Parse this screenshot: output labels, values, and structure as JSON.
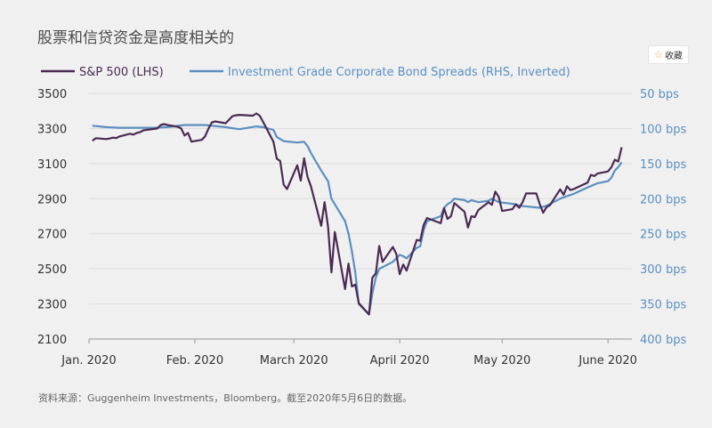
{
  "page": {
    "title": "股票和信贷资金是高度相关的",
    "favorite_label": "收藏",
    "favorite_icon": "star-icon",
    "source": "资料来源：Guggenheim Investments，Bloomberg。截至2020年5月6日的数据。"
  },
  "chart_data": {
    "type": "line",
    "title": "股票和信贷资金是高度相关的",
    "x_labels": [
      "Jan. 2020",
      "Feb. 2020",
      "March 2020",
      "April 2020",
      "May 2020",
      "June 2020"
    ],
    "left_axis": {
      "ticks": [
        "3500",
        "3300",
        "3100",
        "2900",
        "2700",
        "2500",
        "2300",
        "2100"
      ],
      "range": [
        2100,
        3500
      ]
    },
    "right_axis": {
      "ticks": [
        "50 bps",
        "100 bps",
        "150 bps",
        "200 bps",
        "250 bps",
        "300 bps",
        "350 bps",
        "400 bps"
      ],
      "range": [
        50,
        400
      ],
      "inverted": true
    },
    "legend_position": "top-left",
    "series": [
      {
        "name": "S&P 500 (LHS)",
        "axis": "left",
        "color": "#4a2a52",
        "points": [
          [
            "2020-01-02",
            3230
          ],
          [
            "2020-01-03",
            3245
          ],
          [
            "2020-01-06",
            3240
          ],
          [
            "2020-01-07",
            3243
          ],
          [
            "2020-01-08",
            3248
          ],
          [
            "2020-01-09",
            3246
          ],
          [
            "2020-01-10",
            3255
          ],
          [
            "2020-01-13",
            3270
          ],
          [
            "2020-01-14",
            3265
          ],
          [
            "2020-01-15",
            3275
          ],
          [
            "2020-01-16",
            3280
          ],
          [
            "2020-01-17",
            3290
          ],
          [
            "2020-01-21",
            3300
          ],
          [
            "2020-01-22",
            3320
          ],
          [
            "2020-01-23",
            3325
          ],
          [
            "2020-01-24",
            3320
          ],
          [
            "2020-01-27",
            3310
          ],
          [
            "2020-01-28",
            3300
          ],
          [
            "2020-01-29",
            3260
          ],
          [
            "2020-01-30",
            3275
          ],
          [
            "2020-01-31",
            3225
          ],
          [
            "2020-02-03",
            3235
          ],
          [
            "2020-02-04",
            3255
          ],
          [
            "2020-02-05",
            3300
          ],
          [
            "2020-02-06",
            3335
          ],
          [
            "2020-02-07",
            3340
          ],
          [
            "2020-02-10",
            3330
          ],
          [
            "2020-02-11",
            3350
          ],
          [
            "2020-02-12",
            3370
          ],
          [
            "2020-02-13",
            3375
          ],
          [
            "2020-02-14",
            3378
          ],
          [
            "2020-02-18",
            3373
          ],
          [
            "2020-02-19",
            3386
          ],
          [
            "2020-02-20",
            3373
          ],
          [
            "2020-02-21",
            3337
          ],
          [
            "2020-02-24",
            3225
          ],
          [
            "2020-02-25",
            3128
          ],
          [
            "2020-02-26",
            3115
          ],
          [
            "2020-02-27",
            2980
          ],
          [
            "2020-02-28",
            2955
          ],
          [
            "2020-03-02",
            3090
          ],
          [
            "2020-03-03",
            3003
          ],
          [
            "2020-03-04",
            3130
          ],
          [
            "2020-03-05",
            3025
          ],
          [
            "2020-03-06",
            2970
          ],
          [
            "2020-03-09",
            2745
          ],
          [
            "2020-03-10",
            2880
          ],
          [
            "2020-03-11",
            2740
          ],
          [
            "2020-03-12",
            2480
          ],
          [
            "2020-03-13",
            2710
          ],
          [
            "2020-03-16",
            2385
          ],
          [
            "2020-03-17",
            2530
          ],
          [
            "2020-03-18",
            2400
          ],
          [
            "2020-03-19",
            2410
          ],
          [
            "2020-03-20",
            2305
          ],
          [
            "2020-03-23",
            2240
          ],
          [
            "2020-03-24",
            2450
          ],
          [
            "2020-03-25",
            2475
          ],
          [
            "2020-03-26",
            2630
          ],
          [
            "2020-03-27",
            2540
          ],
          [
            "2020-03-30",
            2625
          ],
          [
            "2020-03-31",
            2585
          ],
          [
            "2020-04-01",
            2470
          ],
          [
            "2020-04-02",
            2525
          ],
          [
            "2020-04-03",
            2490
          ],
          [
            "2020-04-06",
            2665
          ],
          [
            "2020-04-07",
            2660
          ],
          [
            "2020-04-08",
            2750
          ],
          [
            "2020-04-09",
            2790
          ],
          [
            "2020-04-13",
            2760
          ],
          [
            "2020-04-14",
            2845
          ],
          [
            "2020-04-15",
            2785
          ],
          [
            "2020-04-16",
            2800
          ],
          [
            "2020-04-17",
            2875
          ],
          [
            "2020-04-20",
            2825
          ],
          [
            "2020-04-21",
            2735
          ],
          [
            "2020-04-22",
            2800
          ],
          [
            "2020-04-23",
            2795
          ],
          [
            "2020-04-24",
            2835
          ],
          [
            "2020-04-27",
            2880
          ],
          [
            "2020-04-28",
            2865
          ],
          [
            "2020-04-29",
            2940
          ],
          [
            "2020-04-30",
            2910
          ],
          [
            "2020-05-01",
            2830
          ],
          [
            "2020-05-04",
            2840
          ],
          [
            "2020-05-05",
            2868
          ],
          [
            "2020-05-06",
            2848
          ],
          [
            "2020-05-07",
            2880
          ],
          [
            "2020-05-08",
            2930
          ],
          [
            "2020-05-11",
            2930
          ],
          [
            "2020-05-12",
            2870
          ],
          [
            "2020-05-13",
            2820
          ],
          [
            "2020-05-14",
            2852
          ],
          [
            "2020-05-15",
            2863
          ],
          [
            "2020-05-18",
            2953
          ],
          [
            "2020-05-19",
            2922
          ],
          [
            "2020-05-20",
            2971
          ],
          [
            "2020-05-21",
            2949
          ],
          [
            "2020-05-22",
            2955
          ],
          [
            "2020-05-26",
            2991
          ],
          [
            "2020-05-27",
            3036
          ],
          [
            "2020-05-28",
            3029
          ],
          [
            "2020-05-29",
            3044
          ],
          [
            "2020-06-01",
            3055
          ],
          [
            "2020-06-02",
            3080
          ],
          [
            "2020-06-03",
            3122
          ],
          [
            "2020-06-04",
            3112
          ],
          [
            "2020-06-05",
            3193
          ]
        ]
      },
      {
        "name": "Investment Grade Corporate Bond Spreads (RHS, Inverted)",
        "axis": "right",
        "color": "#5b8fc0",
        "points": [
          [
            "2020-01-02",
            96
          ],
          [
            "2020-01-06",
            98
          ],
          [
            "2020-01-10",
            99
          ],
          [
            "2020-01-14",
            99
          ],
          [
            "2020-01-20",
            99
          ],
          [
            "2020-01-24",
            98
          ],
          [
            "2020-01-29",
            95
          ],
          [
            "2020-02-04",
            95
          ],
          [
            "2020-02-10",
            98
          ],
          [
            "2020-02-14",
            101
          ],
          [
            "2020-02-19",
            97
          ],
          [
            "2020-02-21",
            98
          ],
          [
            "2020-02-24",
            102
          ],
          [
            "2020-02-25",
            112
          ],
          [
            "2020-02-27",
            118
          ],
          [
            "2020-03-02",
            120
          ],
          [
            "2020-03-04",
            119
          ],
          [
            "2020-03-05",
            125
          ],
          [
            "2020-03-06",
            135
          ],
          [
            "2020-03-09",
            160
          ],
          [
            "2020-03-11",
            175
          ],
          [
            "2020-03-12",
            200
          ],
          [
            "2020-03-13",
            208
          ],
          [
            "2020-03-16",
            232
          ],
          [
            "2020-03-17",
            250
          ],
          [
            "2020-03-18",
            275
          ],
          [
            "2020-03-19",
            305
          ],
          [
            "2020-03-20",
            350
          ],
          [
            "2020-03-23",
            365
          ],
          [
            "2020-03-24",
            335
          ],
          [
            "2020-03-25",
            312
          ],
          [
            "2020-03-26",
            300
          ],
          [
            "2020-03-30",
            290
          ],
          [
            "2020-03-31",
            285
          ],
          [
            "2020-04-01",
            280
          ],
          [
            "2020-04-02",
            282
          ],
          [
            "2020-04-03",
            285
          ],
          [
            "2020-04-06",
            270
          ],
          [
            "2020-04-07",
            268
          ],
          [
            "2020-04-08",
            245
          ],
          [
            "2020-04-09",
            232
          ],
          [
            "2020-04-13",
            225
          ],
          [
            "2020-04-14",
            213
          ],
          [
            "2020-04-15",
            208
          ],
          [
            "2020-04-16",
            205
          ],
          [
            "2020-04-17",
            200
          ],
          [
            "2020-04-20",
            202
          ],
          [
            "2020-04-21",
            205
          ],
          [
            "2020-04-22",
            202
          ],
          [
            "2020-04-24",
            205
          ],
          [
            "2020-04-27",
            203
          ],
          [
            "2020-04-28",
            200
          ],
          [
            "2020-04-30",
            205
          ],
          [
            "2020-05-05",
            208
          ],
          [
            "2020-05-06",
            210
          ],
          [
            "2020-05-12",
            213
          ],
          [
            "2020-05-14",
            210
          ],
          [
            "2020-05-18",
            200
          ],
          [
            "2020-05-19",
            198
          ],
          [
            "2020-05-22",
            193
          ],
          [
            "2020-05-26",
            184
          ],
          [
            "2020-05-29",
            178
          ],
          [
            "2020-06-01",
            175
          ],
          [
            "2020-06-02",
            170
          ],
          [
            "2020-06-03",
            160
          ],
          [
            "2020-06-04",
            155
          ],
          [
            "2020-06-05",
            148
          ]
        ]
      }
    ]
  }
}
